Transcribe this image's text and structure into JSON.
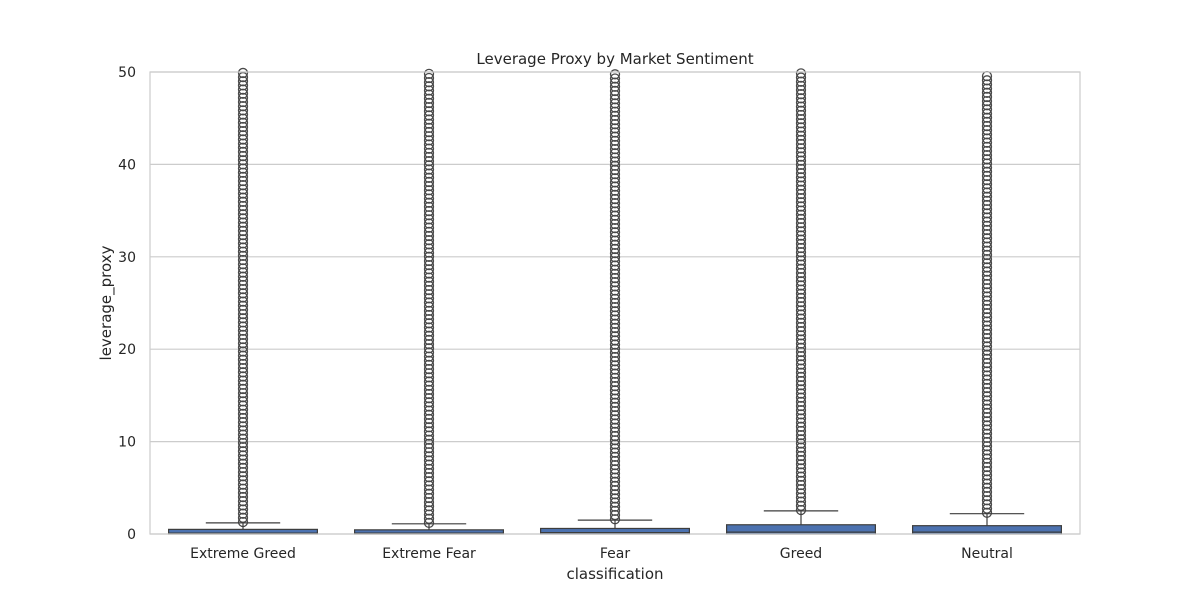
{
  "chart_data": {
    "type": "boxplot",
    "title": "Leverage Proxy by Market Sentiment",
    "xlabel": "classification",
    "ylabel": "leverage_proxy",
    "ylim": [
      0,
      50
    ],
    "yticks": [
      0,
      10,
      20,
      30,
      40,
      50
    ],
    "grid": "y",
    "legend": "none",
    "categories": [
      "Extreme Greed",
      "Extreme Fear",
      "Fear",
      "Greed",
      "Neutral"
    ],
    "boxes": [
      {
        "category": "Extreme Greed",
        "q1": 0.0,
        "median": 0.1,
        "q3": 0.5,
        "whisker_low": 0.0,
        "whisker_high": 1.2,
        "outliers_from": 1.2,
        "outliers_to": 50
      },
      {
        "category": "Extreme Fear",
        "q1": 0.0,
        "median": 0.1,
        "q3": 0.45,
        "whisker_low": 0.0,
        "whisker_high": 1.1,
        "outliers_from": 1.1,
        "outliers_to": 50
      },
      {
        "category": "Fear",
        "q1": 0.0,
        "median": 0.15,
        "q3": 0.6,
        "whisker_low": 0.0,
        "whisker_high": 1.5,
        "outliers_from": 1.5,
        "outliers_to": 50
      },
      {
        "category": "Greed",
        "q1": 0.0,
        "median": 0.2,
        "q3": 1.0,
        "whisker_low": 0.0,
        "whisker_high": 2.5,
        "outliers_from": 2.5,
        "outliers_to": 50
      },
      {
        "category": "Neutral",
        "q1": 0.0,
        "median": 0.2,
        "q3": 0.9,
        "whisker_low": 0.0,
        "whisker_high": 2.2,
        "outliers_from": 2.2,
        "outliers_to": 50
      }
    ],
    "colors": {
      "box": "#4c72b0",
      "line": "#3d3d3d",
      "outlier": "#4a4a4a",
      "grid": "#cccccc",
      "frame": "#cccccc"
    }
  }
}
